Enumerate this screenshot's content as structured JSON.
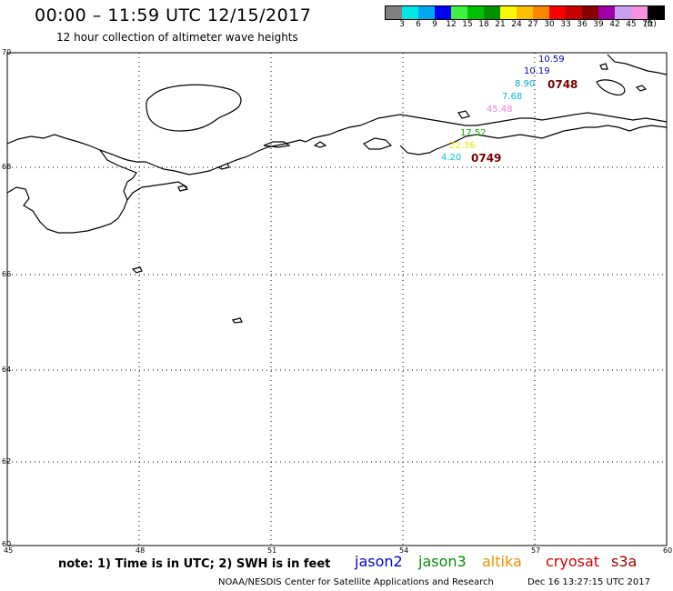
{
  "header": {
    "title": "00:00 – 11:59 UTC 12/15/2017",
    "subtitle": "12 hour collection of altimeter wave heights"
  },
  "colorbar": {
    "colors": [
      "#808080",
      "#00e8e8",
      "#00a8f0",
      "#0000f0",
      "#40f040",
      "#00c000",
      "#009000",
      "#f8f800",
      "#f8c000",
      "#f88800",
      "#f80000",
      "#c80000",
      "#880000",
      "#a000a8",
      "#c8a0f0",
      "#f890e0",
      "#000000"
    ],
    "labels": [
      "3",
      "6",
      "9",
      "12",
      "15",
      "18",
      "21",
      "24",
      "27",
      "30",
      "33",
      "36",
      "39",
      "42",
      "45",
      "70",
      "(ft)"
    ]
  },
  "axes": {
    "y_labels": [
      "70",
      "68",
      "66",
      "64",
      "62",
      "60"
    ],
    "x_labels": [
      "45",
      "48",
      "51",
      "54",
      "57",
      "60"
    ]
  },
  "observations": [
    {
      "value": "10.59",
      "color": "#0000c0"
    },
    {
      "value": "10.19",
      "color": "#0000c0"
    },
    {
      "value": "8.90",
      "color": "#00a8d8"
    },
    {
      "value": "7.68",
      "color": "#00b8d8"
    },
    {
      "value": "45.48",
      "color": "#f080d8"
    },
    {
      "value": "17.52",
      "color": "#00b000"
    },
    {
      "value": "22.36",
      "color": "#e8e800"
    },
    {
      "value": "4.20",
      "color": "#00c8d8"
    }
  ],
  "passes": [
    "0748",
    "0749"
  ],
  "footer": {
    "note": "note: 1) Time is in UTC; 2) SWH is in feet",
    "satellites": [
      {
        "name": "jason2",
        "color": "#0000d0"
      },
      {
        "name": "jason3",
        "color": "#009000"
      },
      {
        "name": "altika",
        "color": "#f09000"
      },
      {
        "name": "cryosat",
        "color": "#d00000"
      },
      {
        "name": "s3a",
        "color": "#a00000"
      }
    ],
    "credit": "NOAA/NESDIS Center for Satellite Applications and Research",
    "timestamp": "Dec 16 13:27:15 UTC 2017"
  }
}
